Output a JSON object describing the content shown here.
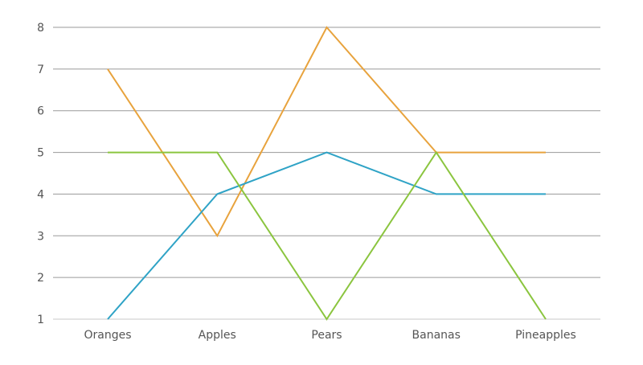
{
  "chart_data": {
    "type": "line",
    "categories": [
      "Oranges",
      "Apples",
      "Pears",
      "Bananas",
      "Pineapples"
    ],
    "series": [
      {
        "values": [
          7,
          3,
          8,
          5,
          5
        ],
        "color": "#E8A33D"
      },
      {
        "values": [
          1,
          4,
          5,
          4,
          4
        ],
        "color": "#2FA3C6"
      },
      {
        "values": [
          5,
          5,
          1,
          5,
          1
        ],
        "color": "#8BC53F"
      }
    ],
    "ylim": [
      1,
      8
    ],
    "yticks": [
      1,
      2,
      3,
      4,
      5,
      6,
      7,
      8
    ],
    "grid": true,
    "legend": "none"
  }
}
